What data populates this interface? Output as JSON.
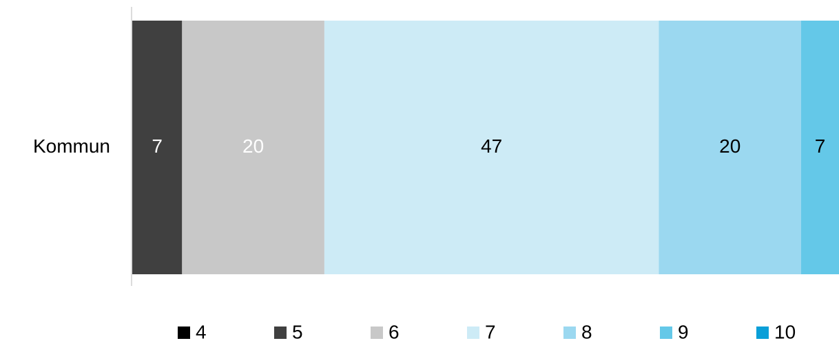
{
  "chart_data": {
    "type": "stacked-hbar",
    "categories": [
      "Kommun"
    ],
    "series": [
      {
        "name": "4",
        "color": "#000000",
        "label_color": "#ffffff",
        "values": [
          0
        ]
      },
      {
        "name": "5",
        "color": "#404040",
        "label_color": "#ffffff",
        "values": [
          7
        ]
      },
      {
        "name": "6",
        "color": "#c8c8c8",
        "label_color": "#ffffff",
        "values": [
          20
        ]
      },
      {
        "name": "7",
        "color": "#cdebf6",
        "label_color": "#000000",
        "values": [
          47
        ]
      },
      {
        "name": "8",
        "color": "#9bd8f0",
        "label_color": "#000000",
        "values": [
          20
        ]
      },
      {
        "name": "9",
        "color": "#64c8e8",
        "label_color": "#000000",
        "values": [
          7
        ]
      },
      {
        "name": "10",
        "color": "#0a9fd8",
        "label_color": "#000000",
        "values": [
          0
        ]
      }
    ],
    "xlim": [
      0,
      100
    ],
    "legend": "bottom"
  }
}
